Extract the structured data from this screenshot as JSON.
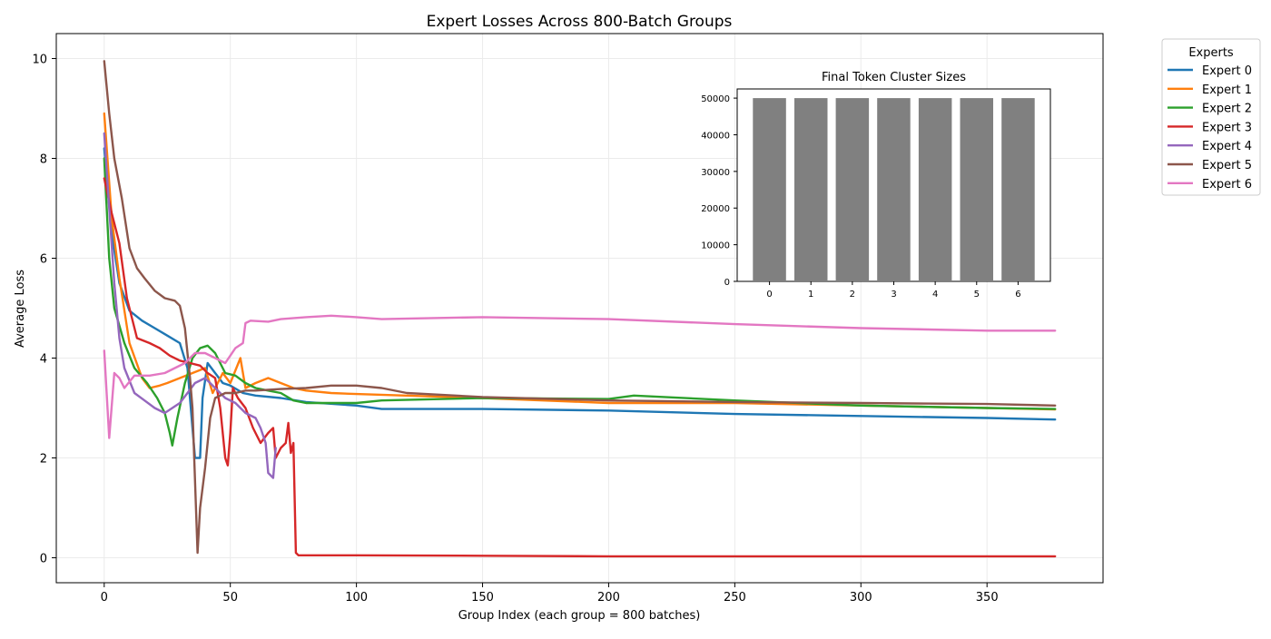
{
  "chart_data": [
    {
      "type": "line",
      "title": "Expert Losses Across 800-Batch Groups",
      "xlabel": "Group Index (each group = 800 batches)",
      "ylabel": "Average Loss",
      "xlim": [
        -19,
        396
      ],
      "ylim": [
        -0.5,
        10.5
      ],
      "xticks": [
        0,
        50,
        100,
        150,
        200,
        250,
        300,
        350
      ],
      "yticks": [
        0,
        2,
        4,
        6,
        8,
        10
      ],
      "grid": true,
      "legend": {
        "title": "Experts",
        "placement": "outside-top-right"
      },
      "series": [
        {
          "name": "Expert 0",
          "color": "#1f77b4",
          "points": [
            [
              0,
              8.2
            ],
            [
              3,
              6.5
            ],
            [
              6,
              5.5
            ],
            [
              10,
              4.95
            ],
            [
              15,
              4.75
            ],
            [
              20,
              4.6
            ],
            [
              25,
              4.45
            ],
            [
              30,
              4.3
            ],
            [
              33,
              3.8
            ],
            [
              35,
              2.6
            ],
            [
              36,
              2.0
            ],
            [
              38,
              2.0
            ],
            [
              39,
              3.2
            ],
            [
              41,
              3.9
            ],
            [
              44,
              3.7
            ],
            [
              47,
              3.5
            ],
            [
              50,
              3.45
            ],
            [
              55,
              3.3
            ],
            [
              60,
              3.25
            ],
            [
              70,
              3.2
            ],
            [
              80,
              3.12
            ],
            [
              100,
              3.05
            ],
            [
              110,
              2.98
            ],
            [
              150,
              2.98
            ],
            [
              200,
              2.95
            ],
            [
              250,
              2.88
            ],
            [
              300,
              2.84
            ],
            [
              350,
              2.8
            ],
            [
              377,
              2.77
            ]
          ]
        },
        {
          "name": "Expert 1",
          "color": "#ff7f0e",
          "points": [
            [
              0,
              8.9
            ],
            [
              3,
              6.8
            ],
            [
              6,
              5.6
            ],
            [
              10,
              4.3
            ],
            [
              15,
              3.6
            ],
            [
              18,
              3.4
            ],
            [
              22,
              3.45
            ],
            [
              25,
              3.5
            ],
            [
              30,
              3.6
            ],
            [
              35,
              3.7
            ],
            [
              40,
              3.8
            ],
            [
              43,
              3.3
            ],
            [
              47,
              3.7
            ],
            [
              50,
              3.5
            ],
            [
              54,
              4.0
            ],
            [
              56,
              3.4
            ],
            [
              60,
              3.5
            ],
            [
              65,
              3.6
            ],
            [
              70,
              3.5
            ],
            [
              75,
              3.4
            ],
            [
              80,
              3.35
            ],
            [
              90,
              3.3
            ],
            [
              100,
              3.28
            ],
            [
              150,
              3.2
            ],
            [
              200,
              3.1
            ],
            [
              250,
              3.1
            ],
            [
              300,
              3.05
            ],
            [
              350,
              3.0
            ],
            [
              377,
              2.97
            ]
          ]
        },
        {
          "name": "Expert 2",
          "color": "#2ca02c",
          "points": [
            [
              0,
              8.0
            ],
            [
              2,
              6.0
            ],
            [
              4,
              5.0
            ],
            [
              8,
              4.3
            ],
            [
              12,
              3.8
            ],
            [
              17,
              3.5
            ],
            [
              21,
              3.2
            ],
            [
              24,
              2.9
            ],
            [
              26,
              2.5
            ],
            [
              27,
              2.25
            ],
            [
              29,
              2.8
            ],
            [
              32,
              3.5
            ],
            [
              35,
              4.0
            ],
            [
              38,
              4.2
            ],
            [
              41,
              4.25
            ],
            [
              44,
              4.1
            ],
            [
              48,
              3.7
            ],
            [
              52,
              3.65
            ],
            [
              56,
              3.5
            ],
            [
              60,
              3.4
            ],
            [
              65,
              3.35
            ],
            [
              70,
              3.3
            ],
            [
              75,
              3.15
            ],
            [
              80,
              3.1
            ],
            [
              100,
              3.1
            ],
            [
              110,
              3.15
            ],
            [
              150,
              3.2
            ],
            [
              200,
              3.18
            ],
            [
              210,
              3.25
            ],
            [
              250,
              3.15
            ],
            [
              300,
              3.05
            ],
            [
              350,
              3.0
            ],
            [
              377,
              2.98
            ]
          ]
        },
        {
          "name": "Expert 3",
          "color": "#d62728",
          "points": [
            [
              0,
              7.6
            ],
            [
              3,
              6.9
            ],
            [
              6,
              6.3
            ],
            [
              9,
              5.2
            ],
            [
              13,
              4.4
            ],
            [
              18,
              4.3
            ],
            [
              22,
              4.2
            ],
            [
              26,
              4.05
            ],
            [
              30,
              3.95
            ],
            [
              34,
              3.9
            ],
            [
              38,
              3.85
            ],
            [
              41,
              3.7
            ],
            [
              44,
              3.6
            ],
            [
              46,
              3.0
            ],
            [
              48,
              2.0
            ],
            [
              49,
              1.85
            ],
            [
              50,
              2.5
            ],
            [
              51,
              3.4
            ],
            [
              53,
              3.2
            ],
            [
              56,
              3.0
            ],
            [
              59,
              2.6
            ],
            [
              62,
              2.3
            ],
            [
              65,
              2.5
            ],
            [
              67,
              2.6
            ],
            [
              68,
              2.0
            ],
            [
              70,
              2.2
            ],
            [
              72,
              2.3
            ],
            [
              73,
              2.7
            ],
            [
              74,
              2.1
            ],
            [
              75,
              2.3
            ],
            [
              76,
              0.1
            ],
            [
              77,
              0.05
            ],
            [
              100,
              0.05
            ],
            [
              150,
              0.04
            ],
            [
              200,
              0.03
            ],
            [
              250,
              0.03
            ],
            [
              300,
              0.03
            ],
            [
              350,
              0.03
            ],
            [
              377,
              0.03
            ]
          ]
        },
        {
          "name": "Expert 4",
          "color": "#9467bd",
          "points": [
            [
              0,
              8.5
            ],
            [
              2,
              7.0
            ],
            [
              4,
              5.5
            ],
            [
              6,
              4.4
            ],
            [
              8,
              3.8
            ],
            [
              12,
              3.3
            ],
            [
              16,
              3.15
            ],
            [
              20,
              3.0
            ],
            [
              24,
              2.9
            ],
            [
              27,
              3.0
            ],
            [
              30,
              3.1
            ],
            [
              33,
              3.3
            ],
            [
              36,
              3.5
            ],
            [
              40,
              3.6
            ],
            [
              44,
              3.4
            ],
            [
              48,
              3.2
            ],
            [
              52,
              3.1
            ],
            [
              56,
              2.9
            ],
            [
              60,
              2.8
            ],
            [
              62,
              2.6
            ],
            [
              64,
              2.3
            ],
            [
              65,
              1.7
            ],
            [
              67,
              1.6
            ],
            [
              68,
              2.2
            ]
          ]
        },
        {
          "name": "Expert 5",
          "color": "#8c564b",
          "points": [
            [
              0,
              9.95
            ],
            [
              2,
              8.9
            ],
            [
              4,
              8.0
            ],
            [
              7,
              7.2
            ],
            [
              10,
              6.2
            ],
            [
              13,
              5.8
            ],
            [
              16,
              5.6
            ],
            [
              20,
              5.35
            ],
            [
              24,
              5.2
            ],
            [
              28,
              5.15
            ],
            [
              30,
              5.05
            ],
            [
              32,
              4.6
            ],
            [
              34,
              3.6
            ],
            [
              35,
              3.0
            ],
            [
              37,
              0.1
            ],
            [
              38,
              1.0
            ],
            [
              40,
              1.8
            ],
            [
              42,
              2.8
            ],
            [
              44,
              3.2
            ],
            [
              48,
              3.3
            ],
            [
              52,
              3.3
            ],
            [
              56,
              3.35
            ],
            [
              60,
              3.35
            ],
            [
              70,
              3.38
            ],
            [
              80,
              3.4
            ],
            [
              90,
              3.45
            ],
            [
              100,
              3.45
            ],
            [
              110,
              3.4
            ],
            [
              120,
              3.3
            ],
            [
              150,
              3.22
            ],
            [
              200,
              3.15
            ],
            [
              250,
              3.12
            ],
            [
              300,
              3.1
            ],
            [
              350,
              3.08
            ],
            [
              377,
              3.05
            ]
          ]
        },
        {
          "name": "Expert 6",
          "color": "#e377c2",
          "points": [
            [
              0,
              4.15
            ],
            [
              2,
              2.4
            ],
            [
              4,
              3.7
            ],
            [
              6,
              3.6
            ],
            [
              8,
              3.4
            ],
            [
              12,
              3.65
            ],
            [
              18,
              3.65
            ],
            [
              24,
              3.7
            ],
            [
              28,
              3.8
            ],
            [
              32,
              3.9
            ],
            [
              36,
              4.1
            ],
            [
              40,
              4.1
            ],
            [
              44,
              4.0
            ],
            [
              48,
              3.9
            ],
            [
              52,
              4.2
            ],
            [
              55,
              4.3
            ],
            [
              56,
              4.7
            ],
            [
              58,
              4.75
            ],
            [
              65,
              4.73
            ],
            [
              70,
              4.78
            ],
            [
              80,
              4.82
            ],
            [
              90,
              4.85
            ],
            [
              100,
              4.82
            ],
            [
              110,
              4.78
            ],
            [
              150,
              4.82
            ],
            [
              200,
              4.78
            ],
            [
              250,
              4.68
            ],
            [
              300,
              4.6
            ],
            [
              350,
              4.55
            ],
            [
              377,
              4.55
            ]
          ]
        }
      ]
    },
    {
      "type": "bar",
      "title": "Final Token Cluster Sizes",
      "categories": [
        "0",
        "1",
        "2",
        "3",
        "4",
        "5",
        "6"
      ],
      "values": [
        50000,
        50000,
        50000,
        50000,
        50000,
        50000,
        50000
      ],
      "ylim": [
        0,
        52500
      ],
      "yticks": [
        0,
        10000,
        20000,
        30000,
        40000,
        50000
      ],
      "color": "#808080",
      "grid": false
    }
  ]
}
